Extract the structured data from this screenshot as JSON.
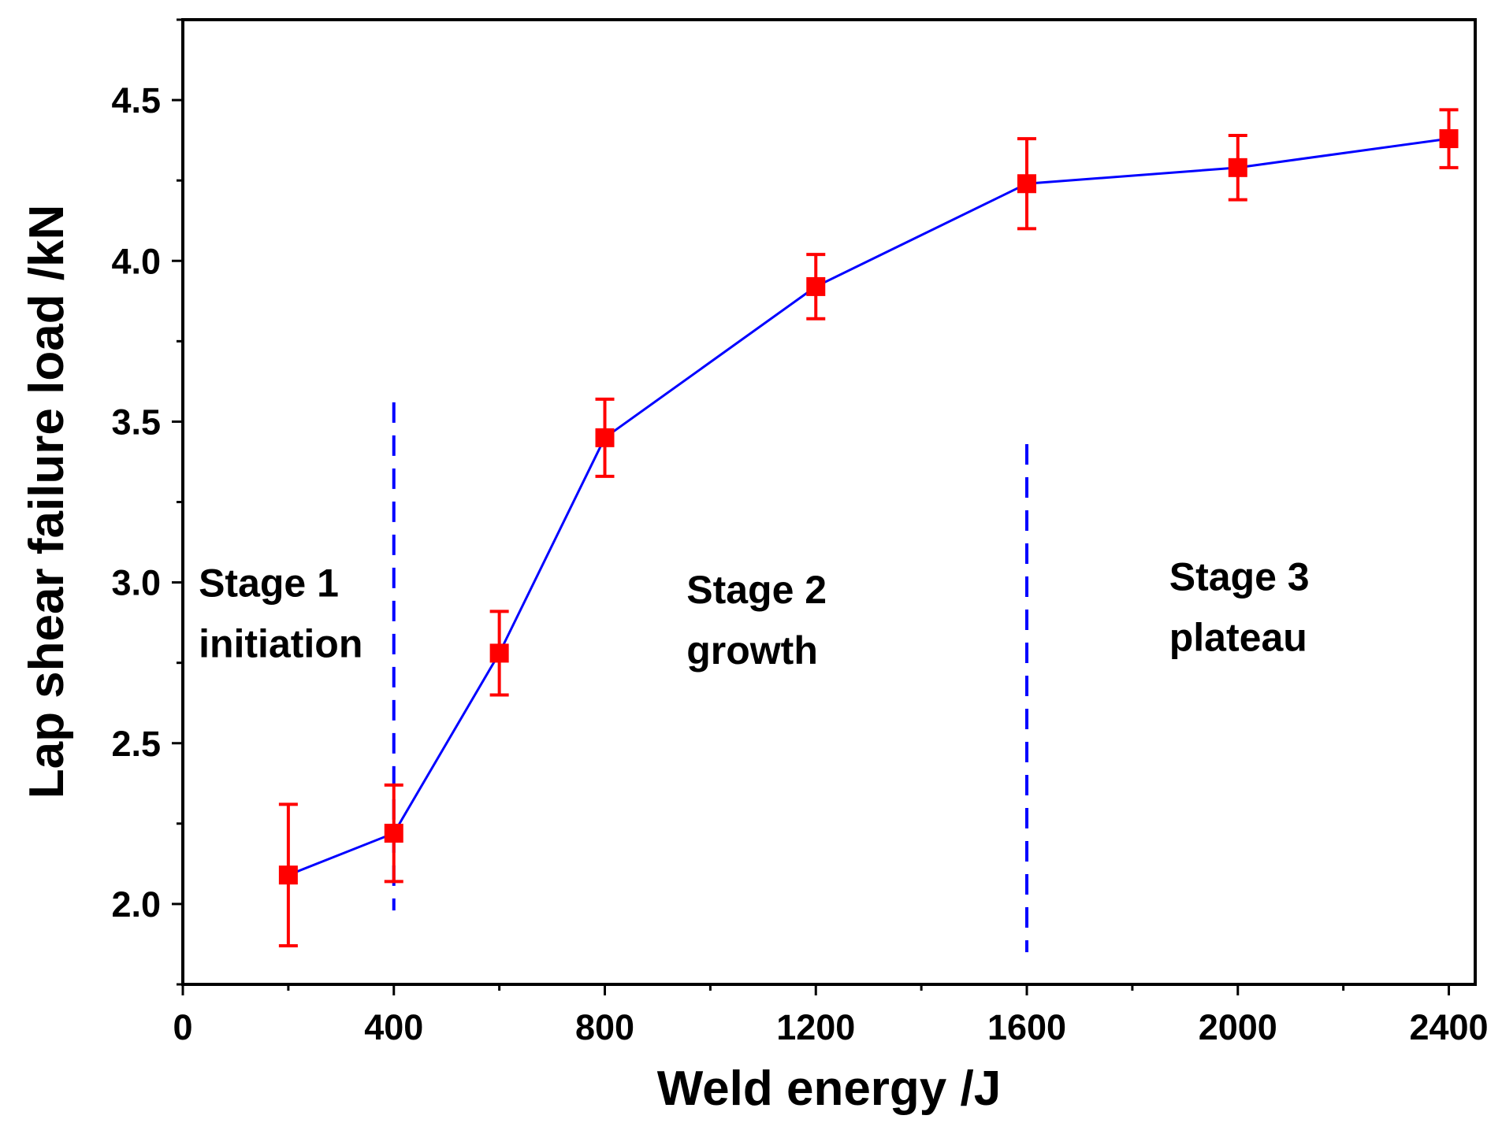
{
  "chart_data": {
    "type": "line",
    "xlabel": "Weld energy /J",
    "ylabel": "Lap shear failure load /kN",
    "xlim": [
      0,
      2450
    ],
    "ylim": [
      1.75,
      4.75
    ],
    "x_ticks": [
      "0",
      "400",
      "800",
      "1200",
      "1600",
      "2000",
      "2400"
    ],
    "y_ticks": [
      "2.0",
      "2.5",
      "3.0",
      "3.5",
      "4.0",
      "4.5"
    ],
    "series": [
      {
        "name": "Lap shear failure load",
        "line_color": "#0000ff",
        "marker_color": "#ff0000",
        "x": [
          200,
          400,
          600,
          800,
          1200,
          1600,
          2000,
          2400
        ],
        "y": [
          2.09,
          2.22,
          2.78,
          3.45,
          3.92,
          4.24,
          4.29,
          4.38
        ],
        "error": [
          0.22,
          0.15,
          0.13,
          0.12,
          0.1,
          0.14,
          0.1,
          0.09
        ]
      }
    ],
    "dividers": [
      {
        "x": 400,
        "y_from": 1.98,
        "y_to": 3.56,
        "color": "#0000ff"
      },
      {
        "x": 1600,
        "y_from": 1.85,
        "y_to": 3.43,
        "color": "#0000ff"
      }
    ],
    "annotations": [
      {
        "lines": [
          "Stage 1",
          "initiation"
        ],
        "x": 30,
        "y": 3.0
      },
      {
        "lines": [
          "Stage 2",
          "growth"
        ],
        "x": 955,
        "y": 2.98
      },
      {
        "lines": [
          "Stage 3",
          "plateau"
        ],
        "x": 1870,
        "y": 3.02
      }
    ]
  }
}
